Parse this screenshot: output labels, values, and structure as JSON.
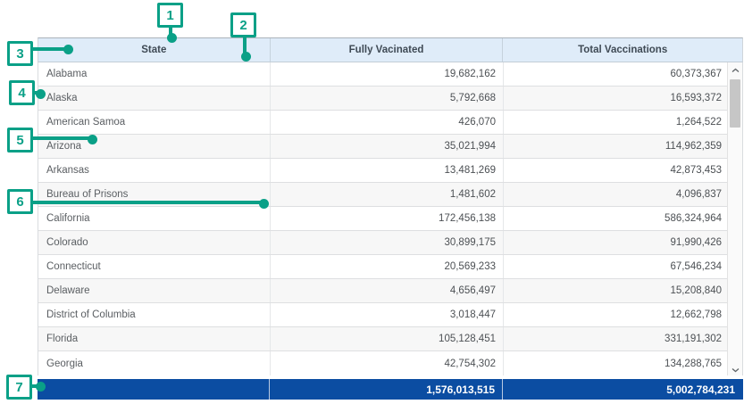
{
  "table": {
    "columns": [
      {
        "label": "State"
      },
      {
        "label": "Fully Vacinated"
      },
      {
        "label": "Total Vaccinations"
      }
    ],
    "rows": [
      {
        "state": "Alabama",
        "fully_vaccinated": "19,682,162",
        "total_vaccinations": "60,373,367"
      },
      {
        "state": "Alaska",
        "fully_vaccinated": "5,792,668",
        "total_vaccinations": "16,593,372"
      },
      {
        "state": "American Samoa",
        "fully_vaccinated": "426,070",
        "total_vaccinations": "1,264,522"
      },
      {
        "state": "Arizona",
        "fully_vaccinated": "35,021,994",
        "total_vaccinations": "114,962,359"
      },
      {
        "state": "Arkansas",
        "fully_vaccinated": "13,481,269",
        "total_vaccinations": "42,873,453"
      },
      {
        "state": "Bureau of Prisons",
        "fully_vaccinated": "1,481,602",
        "total_vaccinations": "4,096,837"
      },
      {
        "state": "California",
        "fully_vaccinated": "172,456,138",
        "total_vaccinations": "586,324,964"
      },
      {
        "state": "Colorado",
        "fully_vaccinated": "30,899,175",
        "total_vaccinations": "91,990,426"
      },
      {
        "state": "Connecticut",
        "fully_vaccinated": "20,569,233",
        "total_vaccinations": "67,546,234"
      },
      {
        "state": "Delaware",
        "fully_vaccinated": "4,656,497",
        "total_vaccinations": "15,208,840"
      },
      {
        "state": "District of Columbia",
        "fully_vaccinated": "3,018,447",
        "total_vaccinations": "12,662,798"
      },
      {
        "state": "Florida",
        "fully_vaccinated": "105,128,451",
        "total_vaccinations": "331,191,302"
      },
      {
        "state": "Georgia",
        "fully_vaccinated": "42,754,302",
        "total_vaccinations": "134,288,765"
      }
    ],
    "total_row": {
      "state": "",
      "fully_vaccinated": "1,576,013,515",
      "total_vaccinations": "5,002,784,231"
    }
  },
  "scrollbar": {
    "up_icon": "chevron-up-icon",
    "down_icon": "chevron-down-icon"
  },
  "annotations": {
    "markers": [
      {
        "label": "1"
      },
      {
        "label": "2"
      },
      {
        "label": "3"
      },
      {
        "label": "4"
      },
      {
        "label": "5"
      },
      {
        "label": "6"
      },
      {
        "label": "7"
      }
    ]
  },
  "colors": {
    "annotation_accent": "#0aa087",
    "header_background": "#dfecf9",
    "total_row_background": "#0b4da2"
  }
}
